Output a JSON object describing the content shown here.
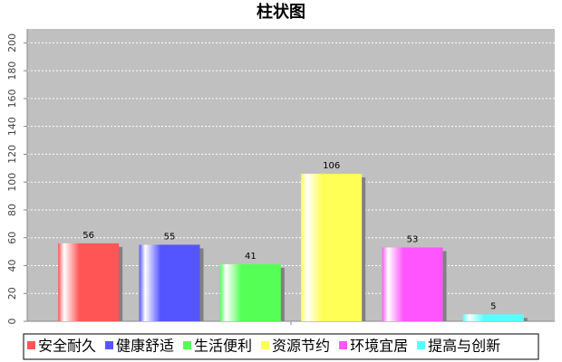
{
  "chart_data": {
    "type": "bar",
    "title": "柱状图",
    "categories": [
      null
    ],
    "series": [
      {
        "name": "安全耐久",
        "color": "#ff5555",
        "values": [
          56
        ]
      },
      {
        "name": "健康舒适",
        "color": "#5555ff",
        "values": [
          55
        ]
      },
      {
        "name": "生活便利",
        "color": "#55ff55",
        "values": [
          41
        ]
      },
      {
        "name": "资源节约",
        "color": "#ffff55",
        "values": [
          106
        ]
      },
      {
        "name": "环境宜居",
        "color": "#ff55ff",
        "values": [
          53
        ]
      },
      {
        "name": "提高与创新",
        "color": "#55ffff",
        "values": [
          5
        ]
      }
    ],
    "ylim": [
      0,
      210
    ],
    "yticks": [
      0,
      20,
      40,
      60,
      80,
      100,
      120,
      140,
      160,
      180,
      200
    ],
    "grid": true
  }
}
